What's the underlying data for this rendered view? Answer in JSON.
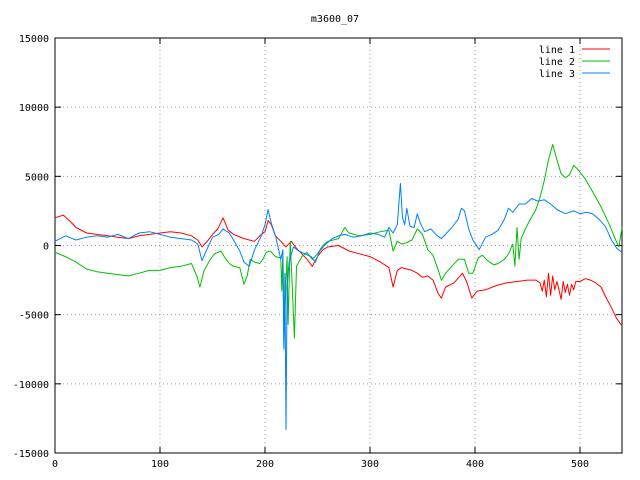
{
  "chart_data": {
    "type": "line",
    "title": "m3600_07",
    "xlabel": "",
    "ylabel": "",
    "xlim": [
      0,
      540
    ],
    "ylim": [
      -15000,
      15000
    ],
    "xticks": [
      0,
      100,
      200,
      300,
      400,
      500
    ],
    "yticks": [
      -15000,
      -10000,
      -5000,
      0,
      5000,
      10000,
      15000
    ],
    "grid": true,
    "legend_position": "top-right",
    "series": [
      {
        "name": "line 1",
        "color": "#ff0000",
        "points": [
          [
            0,
            2000
          ],
          [
            8,
            2200
          ],
          [
            15,
            1700
          ],
          [
            20,
            1300
          ],
          [
            30,
            900
          ],
          [
            40,
            800
          ],
          [
            50,
            700
          ],
          [
            60,
            600
          ],
          [
            70,
            500
          ],
          [
            80,
            700
          ],
          [
            90,
            800
          ],
          [
            100,
            900
          ],
          [
            110,
            1000
          ],
          [
            120,
            900
          ],
          [
            130,
            700
          ],
          [
            136,
            400
          ],
          [
            140,
            -100
          ],
          [
            145,
            300
          ],
          [
            150,
            800
          ],
          [
            155,
            1200
          ],
          [
            160,
            2000
          ],
          [
            165,
            1100
          ],
          [
            170,
            800
          ],
          [
            180,
            500
          ],
          [
            185,
            400
          ],
          [
            190,
            300
          ],
          [
            195,
            700
          ],
          [
            200,
            1000
          ],
          [
            203,
            1800
          ],
          [
            206,
            1500
          ],
          [
            210,
            700
          ],
          [
            215,
            300
          ],
          [
            220,
            -100
          ],
          [
            225,
            300
          ],
          [
            230,
            -200
          ],
          [
            235,
            -600
          ],
          [
            240,
            -1000
          ],
          [
            245,
            -1500
          ],
          [
            250,
            -800
          ],
          [
            255,
            -300
          ],
          [
            260,
            -100
          ],
          [
            270,
            0
          ],
          [
            280,
            -400
          ],
          [
            290,
            -600
          ],
          [
            300,
            -800
          ],
          [
            310,
            -1200
          ],
          [
            318,
            -1600
          ],
          [
            322,
            -3000
          ],
          [
            326,
            -1800
          ],
          [
            330,
            -1600
          ],
          [
            340,
            -1800
          ],
          [
            345,
            -2000
          ],
          [
            350,
            -2300
          ],
          [
            355,
            -2200
          ],
          [
            360,
            -2500
          ],
          [
            365,
            -3500
          ],
          [
            368,
            -3800
          ],
          [
            372,
            -3000
          ],
          [
            380,
            -2700
          ],
          [
            388,
            -2000
          ],
          [
            392,
            -2600
          ],
          [
            397,
            -3800
          ],
          [
            402,
            -3300
          ],
          [
            410,
            -3200
          ],
          [
            420,
            -2900
          ],
          [
            430,
            -2700
          ],
          [
            440,
            -2600
          ],
          [
            450,
            -2500
          ],
          [
            458,
            -2500
          ],
          [
            462,
            -2700
          ],
          [
            464,
            -3300
          ],
          [
            466,
            -2500
          ],
          [
            468,
            -3700
          ],
          [
            470,
            -2000
          ],
          [
            472,
            -3600
          ],
          [
            474,
            -2200
          ],
          [
            476,
            -3200
          ],
          [
            478,
            -2600
          ],
          [
            480,
            -3200
          ],
          [
            482,
            -3900
          ],
          [
            484,
            -2600
          ],
          [
            486,
            -3400
          ],
          [
            488,
            -2800
          ],
          [
            490,
            -3600
          ],
          [
            492,
            -2800
          ],
          [
            494,
            -3200
          ],
          [
            496,
            -2600
          ],
          [
            500,
            -2600
          ],
          [
            505,
            -2400
          ],
          [
            510,
            -2500
          ],
          [
            515,
            -2700
          ],
          [
            520,
            -3000
          ],
          [
            525,
            -3800
          ],
          [
            530,
            -4500
          ],
          [
            535,
            -5300
          ],
          [
            540,
            -5800
          ]
        ]
      },
      {
        "name": "line 2",
        "color": "#00c000",
        "points": [
          [
            0,
            -500
          ],
          [
            10,
            -800
          ],
          [
            20,
            -1200
          ],
          [
            30,
            -1700
          ],
          [
            40,
            -1900
          ],
          [
            50,
            -2000
          ],
          [
            60,
            -2100
          ],
          [
            70,
            -2200
          ],
          [
            80,
            -2000
          ],
          [
            90,
            -1800
          ],
          [
            100,
            -1800
          ],
          [
            110,
            -1600
          ],
          [
            120,
            -1500
          ],
          [
            130,
            -1300
          ],
          [
            135,
            -2200
          ],
          [
            138,
            -3000
          ],
          [
            142,
            -1800
          ],
          [
            148,
            -1000
          ],
          [
            152,
            -600
          ],
          [
            158,
            -400
          ],
          [
            162,
            -900
          ],
          [
            166,
            -1300
          ],
          [
            170,
            -1500
          ],
          [
            176,
            -1600
          ],
          [
            180,
            -2800
          ],
          [
            183,
            -2200
          ],
          [
            186,
            -1000
          ],
          [
            190,
            -1200
          ],
          [
            195,
            -1300
          ],
          [
            198,
            -1000
          ],
          [
            201,
            -500
          ],
          [
            205,
            -400
          ],
          [
            210,
            -800
          ],
          [
            215,
            -900
          ],
          [
            216,
            -3300
          ],
          [
            217,
            -400
          ],
          [
            218,
            -7300
          ],
          [
            220,
            -2500
          ],
          [
            221,
            -800
          ],
          [
            222,
            -5700
          ],
          [
            224,
            300
          ],
          [
            226,
            -3000
          ],
          [
            228,
            -6700
          ],
          [
            230,
            -1500
          ],
          [
            235,
            -800
          ],
          [
            240,
            -500
          ],
          [
            245,
            -1000
          ],
          [
            250,
            -600
          ],
          [
            255,
            0
          ],
          [
            260,
            300
          ],
          [
            270,
            500
          ],
          [
            276,
            1300
          ],
          [
            280,
            900
          ],
          [
            290,
            700
          ],
          [
            300,
            800
          ],
          [
            310,
            1000
          ],
          [
            318,
            1100
          ],
          [
            322,
            -400
          ],
          [
            326,
            300
          ],
          [
            330,
            100
          ],
          [
            335,
            200
          ],
          [
            340,
            400
          ],
          [
            345,
            1200
          ],
          [
            350,
            800
          ],
          [
            355,
            -300
          ],
          [
            360,
            -700
          ],
          [
            365,
            -1800
          ],
          [
            368,
            -2500
          ],
          [
            372,
            -2000
          ],
          [
            378,
            -1500
          ],
          [
            384,
            -1000
          ],
          [
            390,
            -1000
          ],
          [
            394,
            -2000
          ],
          [
            398,
            -2000
          ],
          [
            403,
            -900
          ],
          [
            407,
            -700
          ],
          [
            412,
            -1100
          ],
          [
            418,
            -1400
          ],
          [
            422,
            -1300
          ],
          [
            428,
            -1000
          ],
          [
            432,
            -600
          ],
          [
            436,
            100
          ],
          [
            438,
            -1500
          ],
          [
            440,
            1300
          ],
          [
            442,
            -1000
          ],
          [
            444,
            500
          ],
          [
            448,
            1200
          ],
          [
            452,
            1800
          ],
          [
            458,
            2600
          ],
          [
            462,
            3500
          ],
          [
            466,
            4700
          ],
          [
            470,
            6200
          ],
          [
            474,
            7300
          ],
          [
            478,
            6200
          ],
          [
            482,
            5200
          ],
          [
            486,
            4900
          ],
          [
            490,
            5100
          ],
          [
            494,
            5800
          ],
          [
            498,
            5500
          ],
          [
            505,
            4800
          ],
          [
            512,
            3900
          ],
          [
            520,
            2800
          ],
          [
            528,
            1500
          ],
          [
            534,
            400
          ],
          [
            537,
            -100
          ],
          [
            540,
            1300
          ]
        ]
      },
      {
        "name": "line 3",
        "color": "#0080ff",
        "points": [
          [
            0,
            300
          ],
          [
            10,
            700
          ],
          [
            20,
            400
          ],
          [
            30,
            600
          ],
          [
            40,
            700
          ],
          [
            50,
            600
          ],
          [
            60,
            800
          ],
          [
            70,
            500
          ],
          [
            80,
            900
          ],
          [
            90,
            1000
          ],
          [
            100,
            800
          ],
          [
            110,
            600
          ],
          [
            120,
            500
          ],
          [
            130,
            400
          ],
          [
            136,
            100
          ],
          [
            140,
            -1100
          ],
          [
            144,
            -400
          ],
          [
            150,
            600
          ],
          [
            156,
            800
          ],
          [
            160,
            1200
          ],
          [
            166,
            900
          ],
          [
            170,
            400
          ],
          [
            176,
            -400
          ],
          [
            180,
            -1200
          ],
          [
            185,
            -1500
          ],
          [
            190,
            -300
          ],
          [
            196,
            600
          ],
          [
            200,
            1500
          ],
          [
            203,
            2600
          ],
          [
            206,
            1600
          ],
          [
            210,
            700
          ],
          [
            215,
            -1000
          ],
          [
            217,
            -300
          ],
          [
            218,
            -7500
          ],
          [
            219,
            -2000
          ],
          [
            220,
            -13300
          ],
          [
            221,
            -3000
          ],
          [
            223,
            -1200
          ],
          [
            227,
            -100
          ],
          [
            232,
            -400
          ],
          [
            238,
            -600
          ],
          [
            244,
            -800
          ],
          [
            248,
            -1200
          ],
          [
            252,
            -400
          ],
          [
            258,
            100
          ],
          [
            264,
            500
          ],
          [
            270,
            700
          ],
          [
            276,
            800
          ],
          [
            284,
            600
          ],
          [
            292,
            700
          ],
          [
            300,
            900
          ],
          [
            308,
            800
          ],
          [
            314,
            600
          ],
          [
            318,
            1300
          ],
          [
            322,
            900
          ],
          [
            326,
            1500
          ],
          [
            329,
            4500
          ],
          [
            331,
            2000
          ],
          [
            333,
            1500
          ],
          [
            335,
            2700
          ],
          [
            338,
            1400
          ],
          [
            342,
            1300
          ],
          [
            345,
            2300
          ],
          [
            348,
            1600
          ],
          [
            352,
            1000
          ],
          [
            358,
            1200
          ],
          [
            364,
            700
          ],
          [
            368,
            500
          ],
          [
            373,
            900
          ],
          [
            378,
            1300
          ],
          [
            384,
            1900
          ],
          [
            387,
            2700
          ],
          [
            390,
            2500
          ],
          [
            394,
            1200
          ],
          [
            398,
            400
          ],
          [
            404,
            -300
          ],
          [
            410,
            600
          ],
          [
            416,
            800
          ],
          [
            422,
            1100
          ],
          [
            428,
            1900
          ],
          [
            432,
            2700
          ],
          [
            436,
            2400
          ],
          [
            442,
            3000
          ],
          [
            448,
            3000
          ],
          [
            454,
            3400
          ],
          [
            460,
            3200
          ],
          [
            466,
            3300
          ],
          [
            472,
            3000
          ],
          [
            478,
            2600
          ],
          [
            486,
            2300
          ],
          [
            494,
            2500
          ],
          [
            500,
            2300
          ],
          [
            506,
            2400
          ],
          [
            512,
            2300
          ],
          [
            518,
            1900
          ],
          [
            524,
            1400
          ],
          [
            530,
            400
          ],
          [
            535,
            -200
          ],
          [
            540,
            -500
          ]
        ]
      }
    ]
  }
}
